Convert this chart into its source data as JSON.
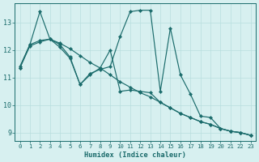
{
  "background_color": "#d7f0f0",
  "grid_color": "#b8dede",
  "line_color": "#1a6b6b",
  "xlabel": "Humidex (Indice chaleur)",
  "xlim": [
    -0.5,
    23.5
  ],
  "ylim": [
    8.7,
    13.7
  ],
  "yticks": [
    9,
    10,
    11,
    12,
    13
  ],
  "xticks": [
    0,
    1,
    2,
    3,
    4,
    5,
    6,
    7,
    8,
    9,
    10,
    11,
    12,
    13,
    14,
    15,
    16,
    17,
    18,
    19,
    20,
    21,
    22,
    23
  ],
  "series": [
    {
      "x": [
        0,
        1,
        2,
        3,
        4,
        5,
        6,
        7,
        8,
        9,
        10,
        11,
        12,
        13,
        14,
        15,
        16,
        17,
        18,
        19,
        20,
        21,
        22,
        23
      ],
      "y": [
        11.4,
        12.2,
        13.4,
        12.4,
        12.1,
        11.7,
        10.75,
        11.15,
        11.3,
        11.4,
        12.5,
        13.4,
        13.45,
        13.45,
        10.5,
        12.8,
        11.1,
        10.4,
        9.6,
        9.55,
        9.15,
        9.05,
        9.0,
        8.9
      ]
    },
    {
      "x": [
        0,
        1,
        2,
        3,
        4,
        5,
        6,
        7,
        8,
        9,
        10,
        11,
        12,
        13,
        14,
        15,
        16,
        17,
        18,
        19,
        20,
        21,
        22,
        23
      ],
      "y": [
        11.35,
        12.15,
        12.3,
        12.4,
        12.25,
        12.05,
        11.8,
        11.55,
        11.35,
        11.1,
        10.85,
        10.65,
        10.45,
        10.3,
        10.1,
        9.9,
        9.7,
        9.55,
        9.4,
        9.3,
        9.15,
        9.05,
        9.0,
        8.9
      ]
    },
    {
      "x": [
        0,
        1,
        2,
        3,
        4,
        5,
        6,
        7,
        8,
        9,
        10,
        11,
        12,
        13,
        14,
        15,
        16,
        17,
        18,
        19,
        20,
        21,
        22,
        23
      ],
      "y": [
        11.35,
        12.2,
        12.35,
        12.4,
        12.2,
        11.75,
        10.75,
        11.1,
        11.35,
        12.0,
        10.5,
        10.55,
        10.5,
        10.45,
        10.1,
        9.9,
        9.7,
        9.55,
        9.4,
        9.3,
        9.15,
        9.05,
        9.0,
        8.9
      ]
    }
  ]
}
